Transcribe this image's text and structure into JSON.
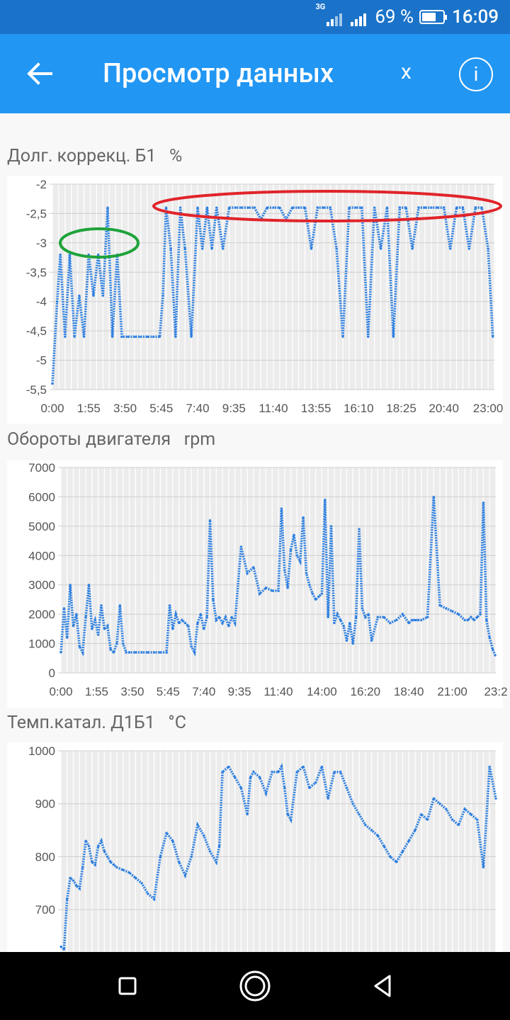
{
  "status_bar": {
    "network_type": "3G",
    "battery_percent": "69 %",
    "battery_level": 0.69,
    "time": "16:09"
  },
  "app_bar": {
    "title": "Просмотр данных",
    "close_label": "x",
    "info_label": "i",
    "back_icon": "arrow-left-icon"
  },
  "charts": [
    {
      "label": "Долг. коррекц. Б1",
      "unit": "%",
      "chart_data": {
        "type": "line",
        "style": "dotted",
        "color": "#2f80e0",
        "y_ticks": [
          "-2",
          "-2,5",
          "-3",
          "-3,5",
          "-4",
          "-4,5",
          "-5",
          "-5,5"
        ],
        "ylim": [
          -5.5,
          -2
        ],
        "x_ticks": [
          "0:00",
          "1:55",
          "3:50",
          "5:45",
          "7:40",
          "9:35",
          "11:40",
          "13:55",
          "16:10",
          "18:25",
          "20:40",
          "23:00"
        ],
        "x_minutes": [
          0,
          115,
          230,
          345,
          460,
          575,
          700,
          835,
          970,
          1105,
          1240,
          1380
        ],
        "xlim": [
          0,
          1400
        ],
        "series": [
          {
            "x": [
              0,
              15,
              25,
              40,
              55,
              70,
              85,
              100,
              115,
              130,
              145,
              160,
              175,
              190,
              205,
              220,
              240,
              260,
              280,
              300,
              320,
              340,
              350,
              360,
              375,
              390,
              405,
              420,
              440,
              460,
              475,
              490,
              505,
              520,
              540,
              560,
              580,
              600,
              620,
              640,
              660,
              680,
              700,
              720,
              740,
              760,
              780,
              800,
              820,
              840,
              860,
              880,
              900,
              920,
              940,
              960,
              980,
              1000,
              1020,
              1040,
              1060,
              1080,
              1100,
              1120,
              1140,
              1160,
              1180,
              1200,
              1220,
              1240,
              1260,
              1280,
              1300,
              1320,
              1340,
              1360,
              1380,
              1395
            ],
            "y": [
              -5.4,
              -4.0,
              -3.2,
              -4.6,
              -3.2,
              -4.6,
              -3.9,
              -4.6,
              -3.2,
              -3.9,
              -3.2,
              -3.9,
              -2.4,
              -4.6,
              -3.2,
              -4.6,
              -4.6,
              -4.6,
              -4.6,
              -4.6,
              -4.6,
              -4.6,
              -3.9,
              -2.4,
              -3.1,
              -4.6,
              -2.4,
              -3.1,
              -4.6,
              -2.4,
              -3.1,
              -2.4,
              -3.1,
              -2.4,
              -3.1,
              -2.4,
              -2.4,
              -2.4,
              -2.4,
              -2.4,
              -2.6,
              -2.4,
              -2.4,
              -2.4,
              -2.6,
              -2.4,
              -2.4,
              -2.4,
              -3.1,
              -2.4,
              -2.4,
              -2.4,
              -3.1,
              -4.6,
              -2.4,
              -2.4,
              -2.4,
              -4.6,
              -2.4,
              -3.1,
              -2.4,
              -4.6,
              -2.4,
              -2.4,
              -3.1,
              -2.4,
              -2.4,
              -2.4,
              -2.4,
              -2.4,
              -3.1,
              -2.4,
              -2.4,
              -3.1,
              -2.4,
              -2.4,
              -3.1,
              -4.6
            ]
          }
        ],
        "annotations": [
          {
            "shape": "ellipse",
            "color": "#1fa33a"
          },
          {
            "shape": "ellipse",
            "color": "#e0242a"
          }
        ]
      }
    },
    {
      "label": "Обороты двигателя",
      "unit": "rpm",
      "chart_data": {
        "type": "line",
        "style": "dotted",
        "color": "#2f80e0",
        "y_ticks": [
          "7000",
          "6000",
          "5000",
          "4000",
          "3000",
          "2000",
          "1000",
          "0"
        ],
        "ylim": [
          0,
          7000
        ],
        "x_ticks": [
          "0:00",
          "1:55",
          "3:50",
          "5:45",
          "7:40",
          "9:35",
          "11:40",
          "14:00",
          "16:20",
          "18:40",
          "21:00",
          "23:2"
        ],
        "x_minutes": [
          0,
          115,
          230,
          345,
          460,
          575,
          700,
          840,
          980,
          1120,
          1260,
          1400
        ],
        "xlim": [
          0,
          1400
        ],
        "series": [
          {
            "x": [
              0,
              10,
              20,
              30,
              40,
              50,
              60,
              70,
              80,
              90,
              100,
              110,
              120,
              130,
              140,
              150,
              160,
              170,
              180,
              190,
              200,
              210,
              220,
              240,
              260,
              280,
              300,
              320,
              340,
              350,
              360,
              370,
              380,
              390,
              400,
              410,
              420,
              430,
              440,
              450,
              460,
              470,
              480,
              490,
              500,
              510,
              520,
              530,
              540,
              550,
              560,
              580,
              600,
              620,
              640,
              660,
              680,
              700,
              710,
              720,
              730,
              740,
              750,
              760,
              770,
              780,
              790,
              800,
              810,
              820,
              830,
              840,
              850,
              860,
              870,
              880,
              890,
              900,
              910,
              920,
              930,
              940,
              950,
              960,
              970,
              980,
              990,
              1000,
              1020,
              1040,
              1060,
              1080,
              1100,
              1120,
              1130,
              1140,
              1150,
              1160,
              1180,
              1200,
              1220,
              1240,
              1260,
              1280,
              1300,
              1310,
              1320,
              1330,
              1340,
              1350,
              1360,
              1370,
              1380,
              1390,
              1398
            ],
            "y": [
              700,
              2200,
              1200,
              3000,
              1600,
              2000,
              900,
              700,
              1900,
              3000,
              1500,
              1800,
              1300,
              2300,
              1500,
              1600,
              800,
              700,
              1000,
              2300,
              1000,
              700,
              700,
              700,
              700,
              700,
              700,
              700,
              700,
              2300,
              1500,
              2000,
              1700,
              1800,
              1700,
              1600,
              900,
              700,
              1700,
              2000,
              1500,
              1900,
              5200,
              2500,
              1800,
              1900,
              1700,
              1900,
              1600,
              1900,
              1700,
              4300,
              3400,
              3600,
              2700,
              2900,
              2800,
              2800,
              5600,
              3500,
              2900,
              4200,
              4700,
              4000,
              3800,
              5300,
              3400,
              3000,
              2700,
              2500,
              2600,
              2700,
              5900,
              1900,
              5000,
              1700,
              2000,
              1800,
              1600,
              1100,
              1700,
              1000,
              1900,
              4900,
              2200,
              1900,
              2000,
              1100,
              1900,
              1900,
              1700,
              1800,
              2000,
              1700,
              1800,
              1800,
              1800,
              1800,
              1900,
              6000,
              2300,
              2200,
              2100,
              2000,
              1800,
              1800,
              1900,
              1800,
              1900,
              2000,
              5800,
              1800,
              1200,
              800,
              600
            ]
          }
        ]
      }
    },
    {
      "label": "Темп.катал. Д1Б1",
      "unit": "°C",
      "chart_data": {
        "type": "line",
        "style": "dotted",
        "color": "#2f80e0",
        "y_ticks": [
          "1000",
          "900",
          "800",
          "700"
        ],
        "ylim": [
          620,
          1000
        ],
        "series": [
          {
            "x": [
              0,
              10,
              20,
              30,
              40,
              50,
              60,
              70,
              80,
              90,
              100,
              110,
              120,
              130,
              140,
              150,
              160,
              170,
              180,
              200,
              220,
              240,
              260,
              280,
              300,
              320,
              340,
              360,
              380,
              400,
              420,
              440,
              460,
              480,
              500,
              510,
              520,
              540,
              560,
              580,
              600,
              610,
              620,
              640,
              660,
              680,
              700,
              710,
              720,
              730,
              740,
              760,
              780,
              800,
              820,
              840,
              860,
              880,
              900,
              920,
              940,
              960,
              980,
              1000,
              1020,
              1040,
              1060,
              1080,
              1100,
              1120,
              1140,
              1160,
              1180,
              1200,
              1220,
              1240,
              1260,
              1280,
              1300,
              1320,
              1340,
              1360,
              1380,
              1400
            ],
            "y": [
              630,
              625,
              720,
              760,
              755,
              745,
              740,
              780,
              830,
              820,
              790,
              785,
              820,
              830,
              810,
              800,
              790,
              785,
              780,
              775,
              770,
              760,
              750,
              730,
              720,
              800,
              845,
              830,
              790,
              765,
              800,
              860,
              840,
              810,
              790,
              820,
              960,
              970,
              950,
              930,
              880,
              950,
              960,
              950,
              920,
              960,
              960,
              970,
              930,
              880,
              870,
              960,
              970,
              930,
              940,
              970,
              910,
              960,
              960,
              930,
              900,
              880,
              860,
              850,
              840,
              820,
              800,
              790,
              810,
              830,
              850,
              880,
              870,
              910,
              900,
              890,
              870,
              860,
              890,
              880,
              870,
              780,
              970,
              910
            ]
          }
        ]
      }
    }
  ]
}
